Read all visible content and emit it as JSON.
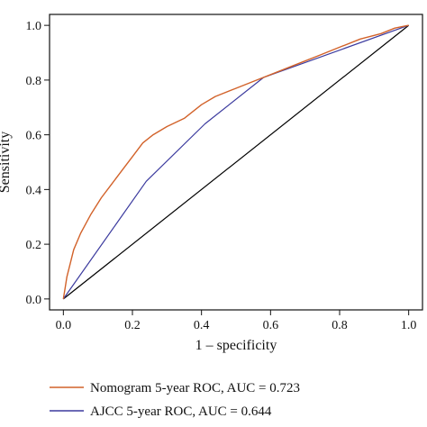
{
  "chart_data": {
    "type": "line",
    "xlabel": "1 – specificity",
    "ylabel": "Sensitivity",
    "xlim": [
      -0.04,
      1.04
    ],
    "ylim": [
      -0.04,
      1.04
    ],
    "x_ticks": [
      "0.0",
      "0.2",
      "0.4",
      "0.6",
      "0.8",
      "1.0"
    ],
    "y_ticks": [
      "0.0",
      "0.2",
      "0.4",
      "0.6",
      "0.8",
      "1.0"
    ],
    "legend_position": "bottom",
    "grid": false,
    "series": [
      {
        "name": "Nomogram 5-year ROC, AUC = 0.723",
        "color": "#d2622a",
        "points": [
          [
            0,
            0
          ],
          [
            0.005,
            0.04
          ],
          [
            0.01,
            0.08
          ],
          [
            0.02,
            0.13
          ],
          [
            0.03,
            0.18
          ],
          [
            0.05,
            0.24
          ],
          [
            0.08,
            0.31
          ],
          [
            0.11,
            0.37
          ],
          [
            0.14,
            0.42
          ],
          [
            0.17,
            0.47
          ],
          [
            0.2,
            0.52
          ],
          [
            0.23,
            0.57
          ],
          [
            0.26,
            0.6
          ],
          [
            0.3,
            0.63
          ],
          [
            0.35,
            0.66
          ],
          [
            0.4,
            0.71
          ],
          [
            0.44,
            0.74
          ],
          [
            0.5,
            0.77
          ],
          [
            0.56,
            0.8
          ],
          [
            0.62,
            0.83
          ],
          [
            0.68,
            0.86
          ],
          [
            0.74,
            0.89
          ],
          [
            0.8,
            0.92
          ],
          [
            0.86,
            0.95
          ],
          [
            0.92,
            0.97
          ],
          [
            0.96,
            0.99
          ],
          [
            1,
            1
          ]
        ]
      },
      {
        "name": "AJCC 5-year ROC, AUC = 0.644",
        "color": "#3b3a9e",
        "points": [
          [
            0,
            0
          ],
          [
            0.24,
            0.43
          ],
          [
            0.41,
            0.64
          ],
          [
            0.58,
            0.81
          ],
          [
            1,
            1
          ]
        ]
      },
      {
        "name": "",
        "color": "#000000",
        "points": [
          [
            0,
            0
          ],
          [
            1,
            1
          ]
        ]
      }
    ]
  }
}
